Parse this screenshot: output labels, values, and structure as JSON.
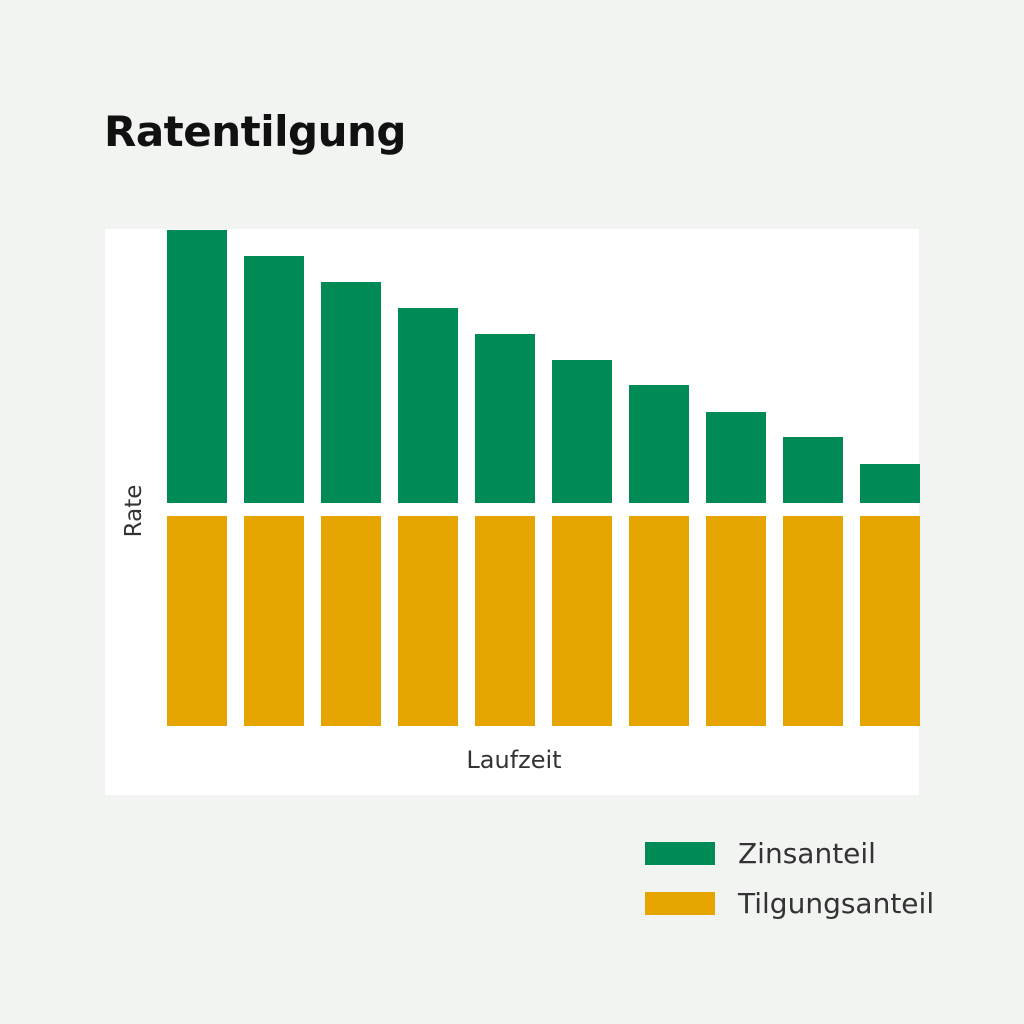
{
  "chart_data": {
    "type": "bar",
    "stacked": true,
    "title": "Ratentilgung",
    "xlabel": "Laufzeit",
    "ylabel": "Rate",
    "categories": [
      "",
      "",
      "",
      "",
      "",
      "",
      "",
      "",
      "",
      ""
    ],
    "series": [
      {
        "name": "Tilgungsanteil",
        "color": "#e6a400",
        "values": [
          210,
          210,
          210,
          210,
          210,
          210,
          210,
          210,
          210,
          210
        ]
      },
      {
        "name": "Zinsanteil",
        "color": "#008a56",
        "values": [
          273,
          247,
          221,
          195,
          169,
          143,
          118,
          91,
          66,
          39
        ]
      }
    ],
    "axis_ticks": false,
    "grid": false,
    "legend": "bottom-right"
  }
}
